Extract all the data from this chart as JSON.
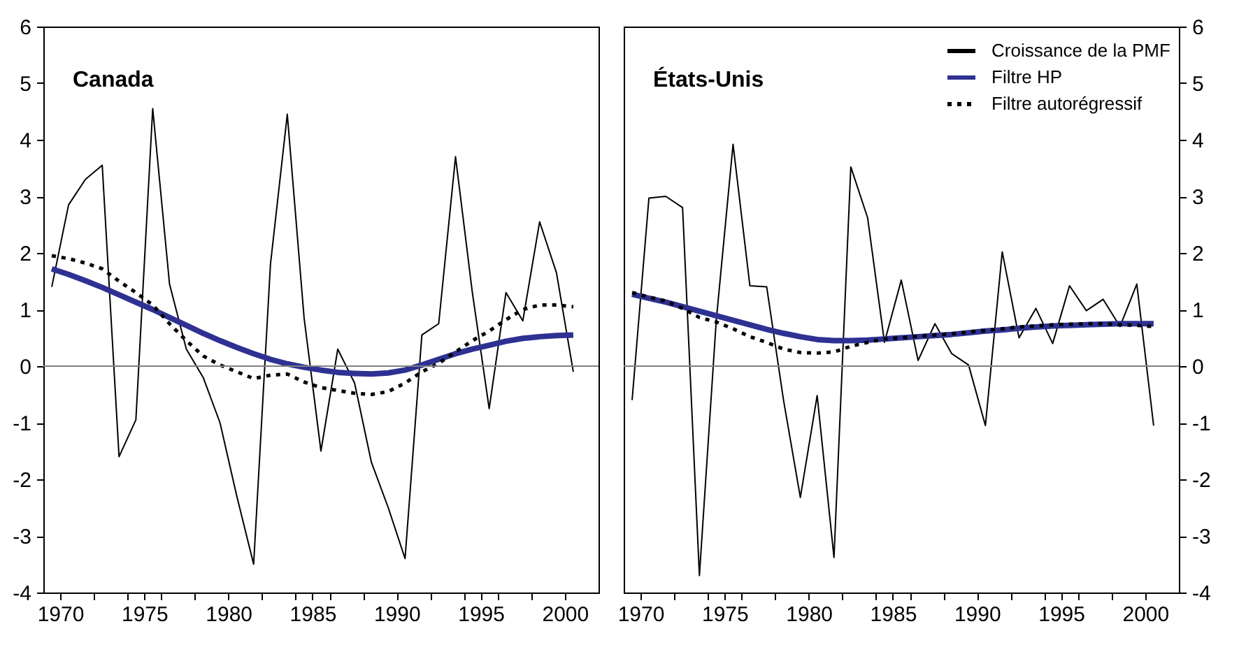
{
  "chart_data": [
    {
      "type": "line",
      "title": "Canada",
      "x": [
        1969.5,
        1970.5,
        1971.5,
        1972.5,
        1973.5,
        1974.5,
        1975.5,
        1976.5,
        1977.5,
        1978.5,
        1979.5,
        1980.5,
        1981.5,
        1982.5,
        1983.5,
        1984.5,
        1985.5,
        1986.5,
        1987.5,
        1988.5,
        1989.5,
        1990.5,
        1991.5,
        1992.5,
        1993.5,
        1994.5,
        1995.5,
        1996.5,
        1997.5,
        1998.5,
        1999.5,
        2000.5
      ],
      "series": [
        {
          "color": "#000000",
          "line_style": "solid",
          "values": [
            1.4,
            2.85,
            3.3,
            3.55,
            -1.6,
            -0.95,
            4.55,
            1.45,
            0.3,
            -0.2,
            -1.0,
            -2.3,
            -3.5,
            1.8,
            4.45,
            0.85,
            -1.5,
            0.3,
            -0.3,
            -1.7,
            -2.5,
            -3.4,
            0.55,
            0.75,
            3.7,
            1.3,
            -0.75,
            1.3,
            0.8,
            2.55,
            1.65,
            -0.1
          ]
        },
        {
          "color": "#2e3192",
          "line_style": "solid",
          "values": [
            1.72,
            1.62,
            1.51,
            1.39,
            1.26,
            1.13,
            1.0,
            0.86,
            0.72,
            0.58,
            0.45,
            0.33,
            0.22,
            0.12,
            0.04,
            -0.02,
            -0.07,
            -0.11,
            -0.13,
            -0.14,
            -0.12,
            -0.07,
            0.02,
            0.12,
            0.22,
            0.3,
            0.37,
            0.44,
            0.49,
            0.52,
            0.54,
            0.55
          ]
        },
        {
          "color": "#000000",
          "line_style": "dotted",
          "values": [
            1.95,
            1.9,
            1.82,
            1.72,
            1.5,
            1.3,
            1.08,
            0.75,
            0.45,
            0.18,
            0.02,
            -0.1,
            -0.22,
            -0.16,
            -0.14,
            -0.28,
            -0.38,
            -0.43,
            -0.48,
            -0.5,
            -0.45,
            -0.3,
            -0.1,
            0.05,
            0.25,
            0.45,
            0.62,
            0.82,
            1.0,
            1.08,
            1.08,
            1.05
          ]
        }
      ],
      "xlim": [
        1969,
        2002
      ],
      "xticks": [
        1970,
        {
          "value": 1972,
          "label": null
        },
        {
          "value": 1974,
          "label": null
        },
        1975,
        {
          "value": 1976,
          "label": null
        },
        {
          "value": 1978,
          "label": null
        },
        1980,
        {
          "value": 1982,
          "label": null
        },
        {
          "value": 1984,
          "label": null
        },
        1985,
        {
          "value": 1986,
          "label": null
        },
        {
          "value": 1988,
          "label": null
        },
        1990,
        {
          "value": 1992,
          "label": null
        },
        {
          "value": 1994,
          "label": null
        },
        1995,
        {
          "value": 1996,
          "label": null
        },
        {
          "value": 1998,
          "label": null
        },
        2000
      ],
      "ylim": [
        -4,
        6
      ],
      "yticks": [
        -4,
        -3,
        -2,
        -1,
        0,
        1,
        2,
        3,
        4,
        5,
        6
      ],
      "ref_lines": [
        {
          "axis": "y",
          "value": 0,
          "color": "#808080"
        }
      ],
      "grid": false,
      "legend": false
    },
    {
      "type": "line",
      "title": "États-Unis",
      "x": [
        1969.5,
        1970.5,
        1971.5,
        1972.5,
        1973.5,
        1974.5,
        1975.5,
        1976.5,
        1977.5,
        1978.5,
        1979.5,
        1980.5,
        1981.5,
        1982.5,
        1983.5,
        1984.5,
        1985.5,
        1986.5,
        1987.5,
        1988.5,
        1989.5,
        1990.5,
        1991.5,
        1992.5,
        1993.5,
        1994.5,
        1995.5,
        1996.5,
        1997.5,
        1998.5,
        1999.5,
        2000.5
      ],
      "series": [
        {
          "name": "Croissance de la PMF",
          "color": "#000000",
          "line_style": "solid",
          "values": [
            -0.6,
            2.97,
            3.0,
            2.8,
            -3.7,
            0.8,
            3.92,
            1.42,
            1.4,
            -0.6,
            -2.32,
            -0.52,
            -3.38,
            3.52,
            2.62,
            0.42,
            1.52,
            0.1,
            0.75,
            0.22,
            0.02,
            -1.05,
            2.02,
            0.5,
            1.02,
            0.4,
            1.42,
            0.98,
            1.18,
            0.7,
            1.45,
            -1.05
          ]
        },
        {
          "name": "Filtre HP",
          "color": "#2e3192",
          "line_style": "solid",
          "values": [
            1.27,
            1.2,
            1.13,
            1.05,
            0.97,
            0.89,
            0.81,
            0.73,
            0.65,
            0.58,
            0.52,
            0.47,
            0.45,
            0.45,
            0.46,
            0.48,
            0.5,
            0.52,
            0.54,
            0.56,
            0.59,
            0.62,
            0.64,
            0.67,
            0.69,
            0.71,
            0.72,
            0.73,
            0.74,
            0.75,
            0.75,
            0.75
          ]
        },
        {
          "name": "Filtre autorégressif",
          "color": "#000000",
          "line_style": "dotted",
          "values": [
            1.3,
            1.22,
            1.15,
            1.02,
            0.86,
            0.78,
            0.66,
            0.52,
            0.42,
            0.3,
            0.24,
            0.23,
            0.25,
            0.35,
            0.42,
            0.48,
            0.5,
            0.53,
            0.55,
            0.57,
            0.6,
            0.63,
            0.66,
            0.69,
            0.71,
            0.73,
            0.74,
            0.75,
            0.75,
            0.73,
            0.72,
            0.7
          ]
        }
      ],
      "xlim": [
        1969,
        2002
      ],
      "xticks": [
        1970,
        {
          "value": 1972,
          "label": null
        },
        {
          "value": 1974,
          "label": null
        },
        1975,
        {
          "value": 1976,
          "label": null
        },
        {
          "value": 1978,
          "label": null
        },
        1980,
        {
          "value": 1982,
          "label": null
        },
        {
          "value": 1984,
          "label": null
        },
        1985,
        {
          "value": 1986,
          "label": null
        },
        {
          "value": 1988,
          "label": null
        },
        1990,
        {
          "value": 1992,
          "label": null
        },
        {
          "value": 1994,
          "label": null
        },
        1995,
        {
          "value": 1996,
          "label": null
        },
        {
          "value": 1998,
          "label": null
        },
        2000
      ],
      "ylim": [
        -4,
        6
      ],
      "yticks": [
        -4,
        -3,
        -2,
        -1,
        0,
        1,
        2,
        3,
        4,
        5,
        6
      ],
      "ref_lines": [
        {
          "axis": "y",
          "value": 0,
          "color": "#808080"
        }
      ],
      "grid": false,
      "legend": "top right"
    }
  ]
}
